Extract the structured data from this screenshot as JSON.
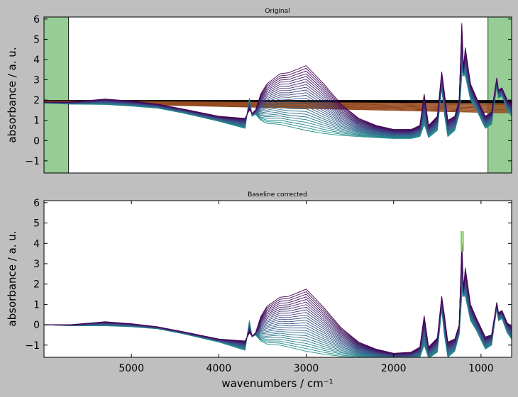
{
  "figure": {
    "background": "#bfbfbf",
    "xlabel": "wavenumbers / cm⁻¹"
  },
  "chart_data": [
    {
      "type": "line",
      "title": "Original",
      "ylabel": "absorbance / a. u.",
      "xlim": [
        6000,
        650
      ],
      "ylim": [
        -1.6,
        6.1
      ],
      "yticks": [
        "−1",
        "0",
        "1",
        "2",
        "3",
        "4",
        "5",
        "6"
      ],
      "ytick_values": [
        -1,
        0,
        1,
        2,
        3,
        4,
        5,
        6
      ],
      "xticks_shown": false,
      "excluded_regions": [
        [
          6000,
          5720
        ],
        [
          920,
          650
        ]
      ],
      "excluded_region_color": "#96cd94",
      "colormap_spectra": [
        "#440154",
        "#3b528b",
        "#21918c"
      ],
      "baseline_colors": [
        "#000000",
        "#8b4513",
        "#a0522d"
      ],
      "series_count": 25,
      "representative_spectrum": {
        "x": [
          6000,
          5700,
          5300,
          5000,
          4700,
          4400,
          4000,
          3700,
          3650,
          3620,
          3580,
          3520,
          3450,
          3300,
          3200,
          3000,
          2800,
          2600,
          2400,
          2200,
          2000,
          1800,
          1700,
          1650,
          1600,
          1500,
          1450,
          1420,
          1380,
          1300,
          1250,
          1220,
          1200,
          1180,
          1120,
          1050,
          950,
          880,
          820,
          800,
          760,
          700,
          650
        ],
        "y_first": [
          1.9,
          1.9,
          2.05,
          1.95,
          1.8,
          1.55,
          1.2,
          1.1,
          1.5,
          1.35,
          1.5,
          2.3,
          2.8,
          3.3,
          3.35,
          3.7,
          2.8,
          1.8,
          1.1,
          0.75,
          0.55,
          0.55,
          0.75,
          2.3,
          0.75,
          1.2,
          3.4,
          2.4,
          1.0,
          1.2,
          2.0,
          5.8,
          3.5,
          4.6,
          2.8,
          2.1,
          1.2,
          1.4,
          3.1,
          2.5,
          2.6,
          2.0,
          1.8
        ],
        "y_last": [
          1.85,
          1.8,
          1.78,
          1.7,
          1.6,
          1.35,
          0.95,
          0.6,
          2.1,
          1.2,
          1.3,
          1.0,
          0.85,
          0.8,
          0.7,
          0.5,
          0.35,
          0.25,
          0.2,
          0.15,
          0.1,
          0.1,
          0.2,
          0.8,
          0.15,
          0.5,
          2.6,
          1.3,
          0.2,
          0.5,
          1.3,
          3.2,
          3.2,
          3.2,
          2.0,
          1.5,
          0.6,
          0.8,
          2.7,
          2.1,
          2.2,
          1.5,
          1.2
        ]
      }
    },
    {
      "type": "line",
      "title": "Baseline corrected",
      "ylabel": "absorbance / a. u.",
      "xlabel": "wavenumbers / cm⁻¹",
      "xlim": [
        6000,
        650
      ],
      "ylim": [
        -1.6,
        6.1
      ],
      "xticks": [
        "5000",
        "4000",
        "3000",
        "2000",
        "1000"
      ],
      "xtick_values": [
        5000,
        4000,
        3000,
        2000,
        1000
      ],
      "yticks": [
        "−1",
        "0",
        "1",
        "2",
        "3",
        "4",
        "5",
        "6"
      ],
      "ytick_values": [
        -1,
        0,
        1,
        2,
        3,
        4,
        5,
        6
      ],
      "colormap_spectra": [
        "#440154",
        "#3b528b",
        "#21918c"
      ],
      "highlight_color": "#7ad151",
      "series_count": 25,
      "representative_spectrum": {
        "x": [
          6000,
          5700,
          5300,
          5000,
          4700,
          4400,
          4000,
          3700,
          3650,
          3620,
          3580,
          3520,
          3450,
          3300,
          3200,
          3000,
          2800,
          2600,
          2400,
          2200,
          2000,
          1800,
          1700,
          1650,
          1600,
          1500,
          1450,
          1420,
          1380,
          1300,
          1250,
          1220,
          1200,
          1180,
          1120,
          1050,
          950,
          880,
          820,
          800,
          760,
          700,
          650
        ],
        "y_first": [
          0.0,
          0.0,
          0.15,
          0.05,
          -0.1,
          -0.35,
          -0.7,
          -0.8,
          -0.4,
          -0.55,
          -0.4,
          0.4,
          0.9,
          1.35,
          1.4,
          1.75,
          0.85,
          -0.15,
          -0.85,
          -1.2,
          -1.4,
          -1.35,
          -1.1,
          0.45,
          -1.1,
          -0.65,
          1.4,
          0.5,
          -0.85,
          -0.7,
          0.0,
          4.0,
          1.7,
          2.8,
          1.0,
          0.3,
          -0.6,
          -0.5,
          1.1,
          0.6,
          0.7,
          0.1,
          -0.1
        ],
        "y_last": [
          0.0,
          -0.05,
          -0.05,
          -0.1,
          -0.2,
          -0.45,
          -0.85,
          -1.25,
          0.2,
          -0.6,
          -0.5,
          -0.8,
          -0.95,
          -1.0,
          -1.1,
          -1.3,
          -1.45,
          -1.55,
          -1.6,
          -1.65,
          -1.7,
          -1.7,
          -1.6,
          -1.0,
          -1.65,
          -1.35,
          0.75,
          -0.5,
          -1.6,
          -1.3,
          -0.5,
          1.4,
          1.4,
          1.4,
          0.2,
          -0.3,
          -1.2,
          -1.0,
          0.8,
          0.2,
          0.3,
          -0.4,
          -0.7
        ]
      }
    }
  ]
}
